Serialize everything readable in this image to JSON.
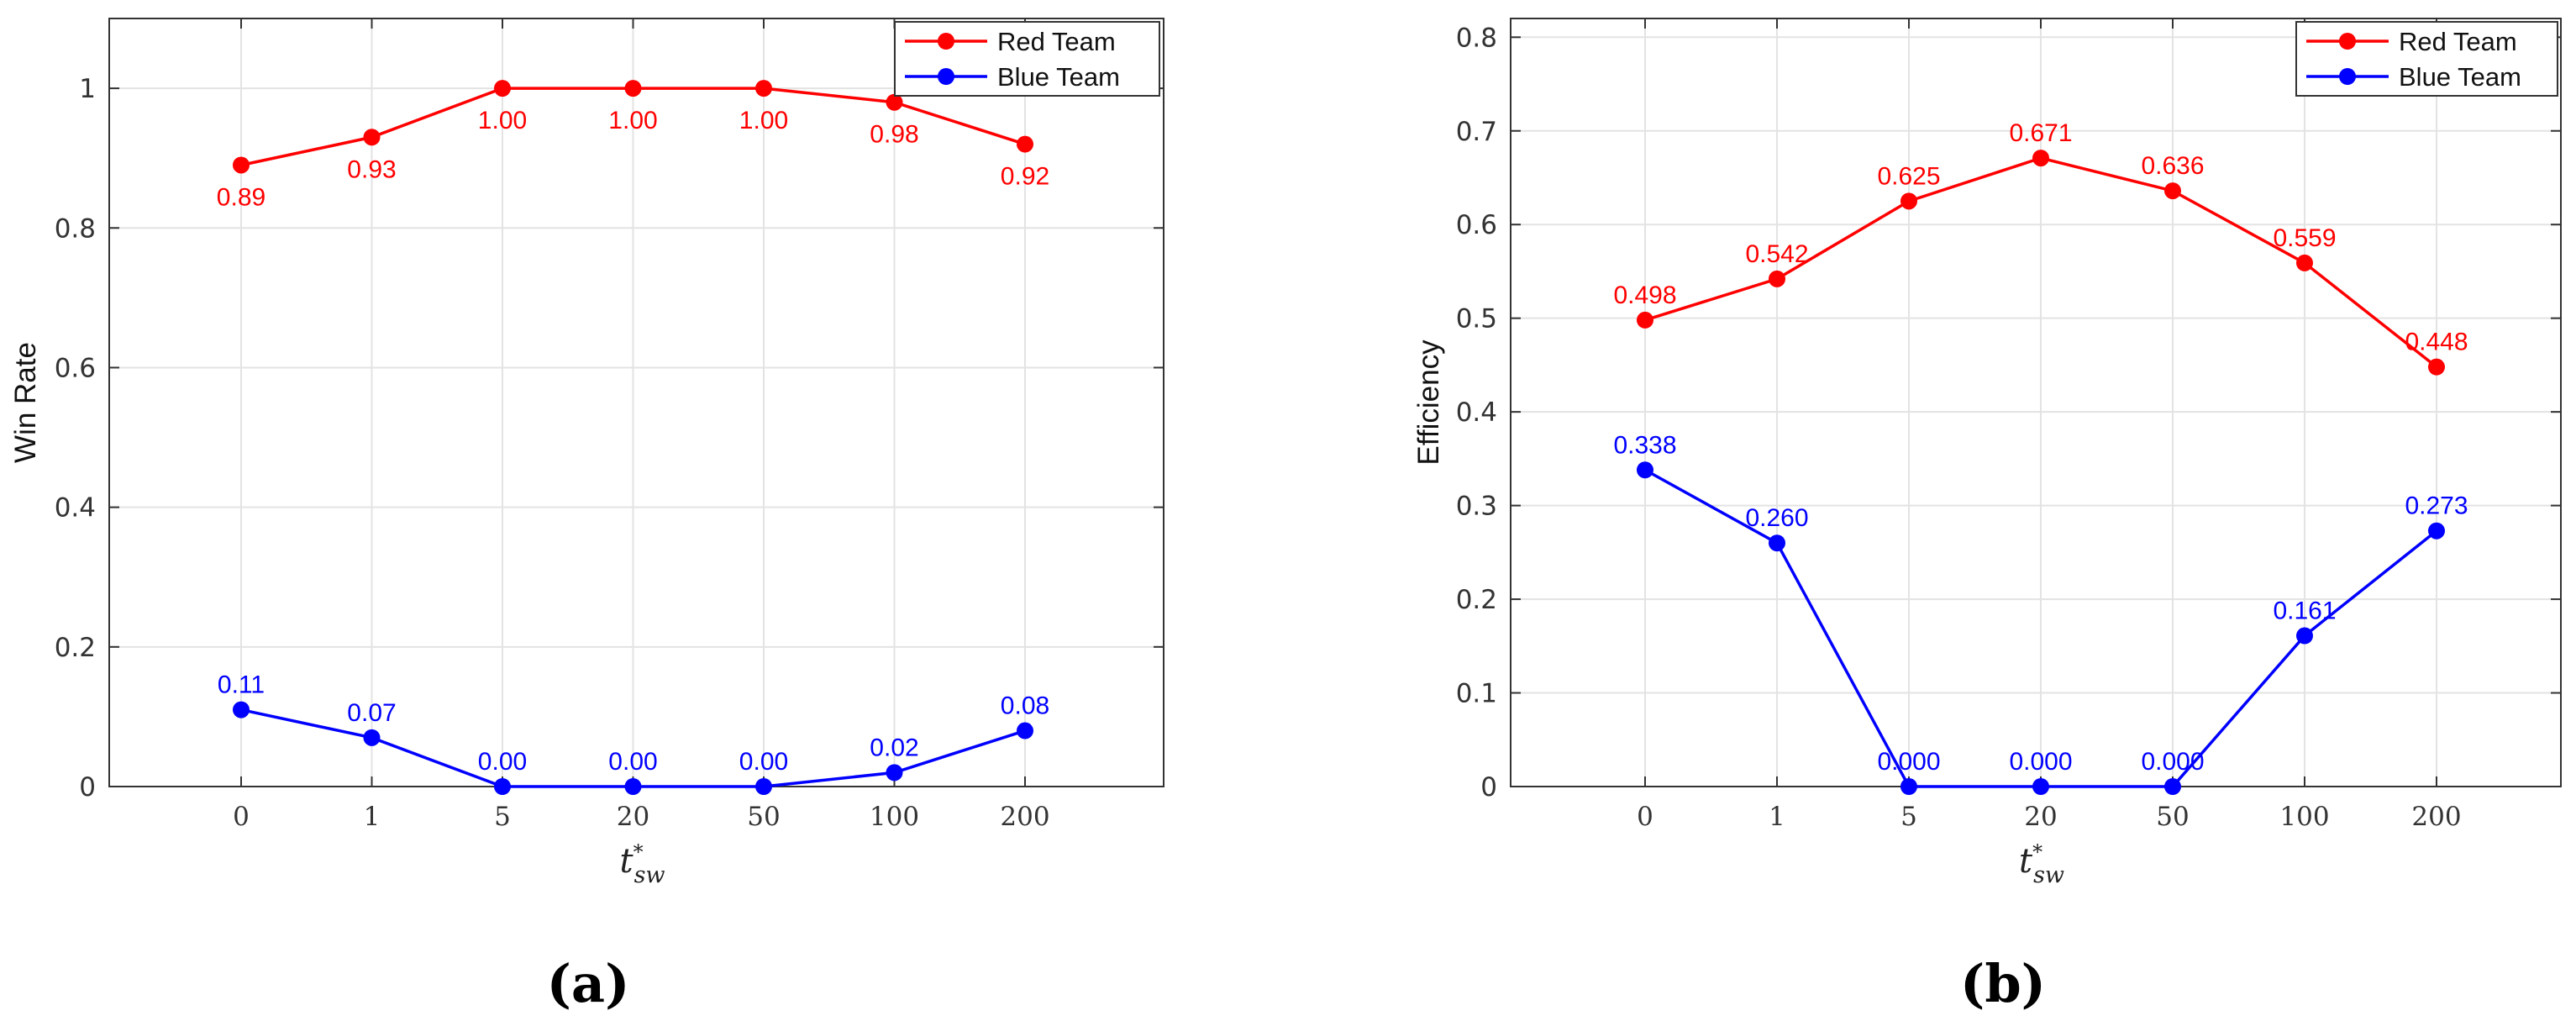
{
  "chart_data": [
    {
      "type": "line",
      "panel_label": "(a)",
      "title": "",
      "xlabel": {
        "base": "t",
        "sup": "*",
        "sub": "sw"
      },
      "ylabel": "Win Rate",
      "categories": [
        "0",
        "1",
        "5",
        "20",
        "50",
        "100",
        "200"
      ],
      "ylim": [
        0,
        1.1
      ],
      "yticks": [
        0,
        0.2,
        0.4,
        0.6,
        0.8,
        1
      ],
      "ytick_labels": [
        "0",
        "0.2",
        "0.4",
        "0.6",
        "0.8",
        "1"
      ],
      "grid": true,
      "legend_position": "top-right",
      "series": [
        {
          "name": "Red Team",
          "color": "#ff0000",
          "label_position": "below",
          "values": [
            0.89,
            0.93,
            1.0,
            1.0,
            1.0,
            0.98,
            0.92
          ],
          "labels": [
            "0.89",
            "0.93",
            "1.00",
            "1.00",
            "1.00",
            "0.98",
            "0.92"
          ]
        },
        {
          "name": "Blue Team",
          "color": "#0000ff",
          "label_position": "above",
          "values": [
            0.11,
            0.07,
            0.0,
            0.0,
            0.0,
            0.02,
            0.08
          ],
          "labels": [
            "0.11",
            "0.07",
            "0.00",
            "0.00",
            "0.00",
            "0.02",
            "0.08"
          ]
        }
      ]
    },
    {
      "type": "line",
      "panel_label": "(b)",
      "title": "",
      "xlabel": {
        "base": "t",
        "sup": "*",
        "sub": "sw"
      },
      "ylabel": "Efficiency",
      "categories": [
        "0",
        "1",
        "5",
        "20",
        "50",
        "100",
        "200"
      ],
      "ylim": [
        0,
        0.82
      ],
      "yticks": [
        0,
        0.1,
        0.2,
        0.3,
        0.4,
        0.5,
        0.6,
        0.7,
        0.8
      ],
      "ytick_labels": [
        "0",
        "0.1",
        "0.2",
        "0.3",
        "0.4",
        "0.5",
        "0.6",
        "0.7",
        "0.8"
      ],
      "grid": true,
      "legend_position": "top-right",
      "series": [
        {
          "name": "Red Team",
          "color": "#ff0000",
          "label_position": "above",
          "values": [
            0.498,
            0.542,
            0.625,
            0.671,
            0.636,
            0.559,
            0.448
          ],
          "labels": [
            "0.498",
            "0.542",
            "0.625",
            "0.671",
            "0.636",
            "0.559",
            "0.448"
          ]
        },
        {
          "name": "Blue Team",
          "color": "#0000ff",
          "label_position": "above",
          "values": [
            0.338,
            0.26,
            0.0,
            0.0,
            0.0,
            0.161,
            0.273
          ],
          "labels": [
            "0.338",
            "0.260",
            "0.000",
            "0.000",
            "0.000",
            "0.161",
            "0.273"
          ]
        }
      ]
    }
  ]
}
